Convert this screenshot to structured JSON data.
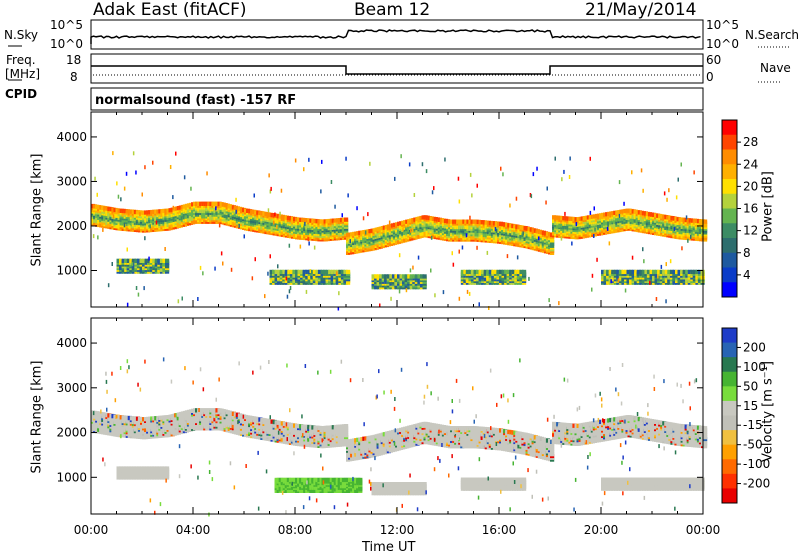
{
  "header": {
    "station": "Adak East (fitACF)",
    "beam": "Beam 12",
    "date": "21/May/2014"
  },
  "top_panels": {
    "nsky_label": "N.Sky",
    "nsky_ticks": [
      "10^5",
      "10^0"
    ],
    "nsearch_label": "N.Search",
    "nsearch_ticks": [
      "10^5",
      "10^0"
    ],
    "freq_label": "Freq.",
    "freq_unit": "[MHz]",
    "freq_ticks": [
      "18",
      "8"
    ],
    "nave_label": "Nave",
    "nave_ticks": [
      "60",
      "0"
    ],
    "cpid_label": "CPID",
    "cpid_text": "normalsound (fast) -157 RF"
  },
  "colorbars": {
    "power": {
      "label": "Power [dB]",
      "ticks": [
        "28",
        "24",
        "20",
        "16",
        "12",
        "8",
        "4"
      ],
      "colors": [
        "#ff0000",
        "#ff4500",
        "#ff8c00",
        "#ffb000",
        "#ffe000",
        "#b4d23c",
        "#64b450",
        "#3c8c64",
        "#2d6e6e",
        "#1e5aa0",
        "#0a3cc8",
        "#0000ff"
      ]
    },
    "velocity": {
      "label": "Velocity [m s⁻¹]",
      "ticks": [
        "200",
        "100",
        "50",
        "15",
        "-15",
        "-50",
        "-100",
        "-200"
      ],
      "colors": [
        "#1e3cc8",
        "#2864b4",
        "#287850",
        "#46b432",
        "#78dc3c",
        "#c8c8c0",
        "#c0c0b8",
        "#f0c040",
        "#ffa000",
        "#ff6a00",
        "#ff3000",
        "#e80000"
      ]
    }
  },
  "chart_data": [
    {
      "type": "heatmap",
      "name": "power",
      "ylabel": "Slant Range [km]",
      "xlabel": "Time UT",
      "x_ticks": [
        "00:00",
        "04:00",
        "08:00",
        "12:00",
        "16:00",
        "20:00",
        "00:00"
      ],
      "y_ticks": [
        1000,
        2000,
        3000,
        4000
      ],
      "ylim": [
        180,
        4560
      ],
      "xlim_hours": [
        0,
        24
      ],
      "bands": [
        {
          "t": [
            0,
            1,
            2,
            3,
            4,
            5,
            6,
            7,
            8,
            9,
            10
          ],
          "range_km": [
            2250,
            2150,
            2100,
            2150,
            2300,
            2300,
            2150,
            2050,
            1950,
            1900,
            1950
          ]
        },
        {
          "t": [
            10,
            11,
            12,
            13,
            14,
            15,
            16,
            17,
            18
          ],
          "range_km": [
            1600,
            1700,
            1850,
            2000,
            1900,
            1900,
            1850,
            1750,
            1600
          ]
        },
        {
          "t": [
            18,
            19,
            20,
            21,
            22,
            23,
            24
          ],
          "range_km": [
            2000,
            1950,
            2050,
            2150,
            2050,
            1950,
            1900
          ]
        }
      ]
    },
    {
      "type": "heatmap",
      "name": "velocity",
      "ylabel": "Slant Range [km]",
      "xlabel": "Time UT",
      "x_ticks": [
        "00:00",
        "04:00",
        "08:00",
        "12:00",
        "16:00",
        "20:00",
        "00:00"
      ],
      "y_ticks": [
        1000,
        2000,
        3000,
        4000
      ],
      "ylim": [
        180,
        4560
      ],
      "xlim_hours": [
        0,
        24
      ]
    }
  ],
  "xaxis": {
    "ticks": [
      "00:00",
      "04:00",
      "08:00",
      "12:00",
      "16:00",
      "20:00",
      "00:00"
    ],
    "label": "Time UT"
  },
  "yaxis": {
    "label": "Slant Range [km]",
    "ticks": [
      "4000",
      "3000",
      "2000",
      "1000"
    ]
  }
}
